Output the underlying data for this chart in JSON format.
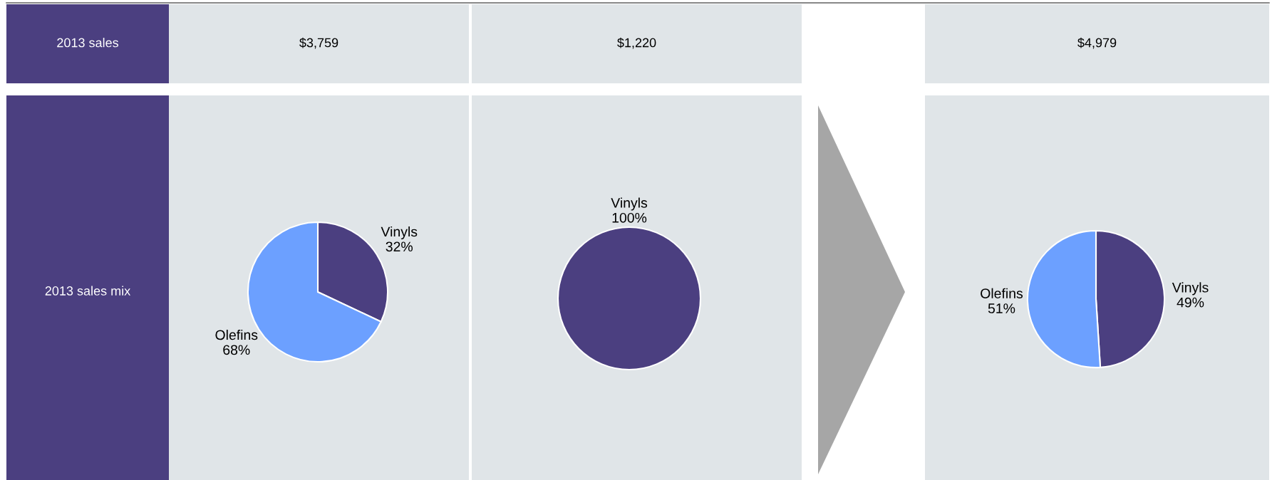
{
  "chart_data": [
    {
      "type": "other",
      "annotations": [
        "2013 sales",
        "2013 sales mix"
      ]
    },
    {
      "type": "pie",
      "title": "$3,759",
      "categories": [
        "Vinyls",
        "Olefins"
      ],
      "values": [
        32,
        68
      ],
      "value_labels": [
        "32%",
        "68%"
      ],
      "colors": [
        "#4b3f80",
        "#6ca0ff"
      ]
    },
    {
      "type": "pie",
      "title": "$1,220",
      "categories": [
        "Vinyls"
      ],
      "values": [
        100
      ],
      "value_labels": [
        "100%"
      ],
      "colors": [
        "#4b3f80"
      ]
    },
    {
      "type": "pie",
      "title": "$4,979",
      "categories": [
        "Vinyls",
        "Olefins"
      ],
      "values": [
        49,
        51
      ],
      "value_labels": [
        "49%",
        "51%"
      ],
      "colors": [
        "#4b3f80",
        "#6ca0ff"
      ]
    }
  ]
}
